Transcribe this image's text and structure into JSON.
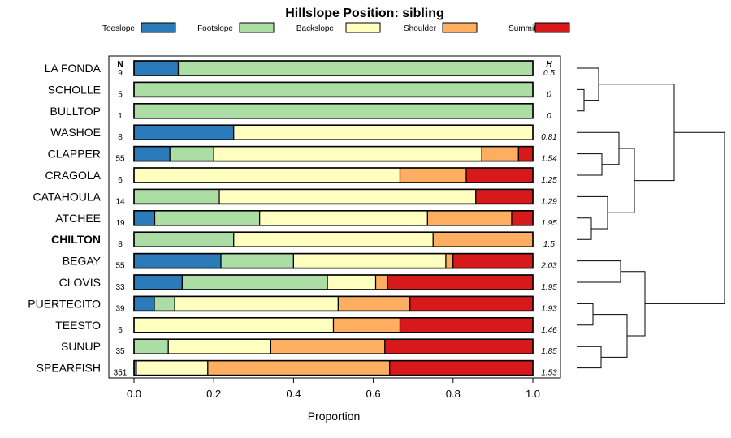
{
  "chart_data": {
    "type": "bar",
    "stacked": true,
    "orientation": "horizontal",
    "title": "Hillslope Position: sibling",
    "xlabel": "Proportion",
    "xlim": [
      0,
      1
    ],
    "xticks": [
      "0.0",
      "0.2",
      "0.4",
      "0.6",
      "0.8",
      "1.0"
    ],
    "xtick_values": [
      0,
      0.2,
      0.4,
      0.6,
      0.8,
      1.0
    ],
    "legend_position": "top",
    "n_header": "N",
    "h_header": "H",
    "series": [
      {
        "name": "Toeslope",
        "color": "#2b7bba"
      },
      {
        "name": "Footslope",
        "color": "#abdda4"
      },
      {
        "name": "Backslope",
        "color": "#ffffbf"
      },
      {
        "name": "Shoulder",
        "color": "#fdae61"
      },
      {
        "name": "Summit",
        "color": "#d7191c"
      }
    ],
    "rows": [
      {
        "label": "LA FONDA",
        "n": "9",
        "h": "0.5",
        "values": [
          0.111,
          0.889,
          0,
          0,
          0
        ]
      },
      {
        "label": "SCHOLLE",
        "n": "5",
        "h": "0",
        "values": [
          0,
          1.0,
          0,
          0,
          0
        ]
      },
      {
        "label": "BULLTOP",
        "n": "1",
        "h": "0",
        "values": [
          0,
          1.0,
          0,
          0,
          0
        ]
      },
      {
        "label": "WASHOE",
        "n": "8",
        "h": "0.81",
        "values": [
          0.25,
          0,
          0.75,
          0,
          0
        ]
      },
      {
        "label": "CLAPPER",
        "n": "55",
        "h": "1.54",
        "values": [
          0.09,
          0.11,
          0.672,
          0.092,
          0.036
        ]
      },
      {
        "label": "CRAGOLA",
        "n": "6",
        "h": "1.25",
        "values": [
          0,
          0,
          0.667,
          0.166,
          0.167
        ]
      },
      {
        "label": "CATAHOULA",
        "n": "14",
        "h": "1.29",
        "values": [
          0,
          0.214,
          0.643,
          0,
          0.143
        ]
      },
      {
        "label": "ATCHEE",
        "n": "19",
        "h": "1.95",
        "values": [
          0.052,
          0.263,
          0.421,
          0.211,
          0.053
        ]
      },
      {
        "label": "CHILTON",
        "n": "8",
        "h": "1.5",
        "values": [
          0,
          0.25,
          0.5,
          0.25,
          0
        ],
        "bold": true
      },
      {
        "label": "BEGAY",
        "n": "55",
        "h": "2.03",
        "values": [
          0.218,
          0.182,
          0.382,
          0.018,
          0.2
        ]
      },
      {
        "label": "CLOVIS",
        "n": "33",
        "h": "1.95",
        "values": [
          0.121,
          0.364,
          0.121,
          0.03,
          0.364
        ]
      },
      {
        "label": "PUERTECITO",
        "n": "39",
        "h": "1.93",
        "values": [
          0.051,
          0.051,
          0.41,
          0.18,
          0.308
        ]
      },
      {
        "label": "TEESTO",
        "n": "6",
        "h": "1.46",
        "values": [
          0,
          0,
          0.5,
          0.167,
          0.333
        ]
      },
      {
        "label": "SUNUP",
        "n": "35",
        "h": "1.85",
        "values": [
          0,
          0.086,
          0.257,
          0.286,
          0.371
        ]
      },
      {
        "label": "SPEARFISH",
        "n": "351",
        "h": "1.53",
        "values": [
          0.006,
          0,
          0.179,
          0.456,
          0.359
        ]
      }
    ]
  }
}
